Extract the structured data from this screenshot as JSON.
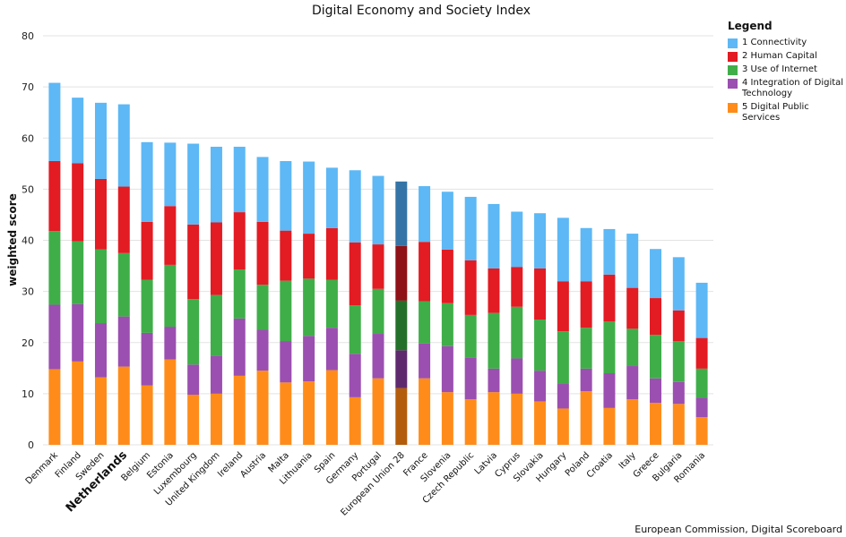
{
  "chart_data": {
    "type": "bar",
    "stacked": true,
    "title": "Digital Economy and Society Index",
    "ylabel": "weighted score",
    "xlabel": "",
    "ylim": [
      0,
      80
    ],
    "yticks": [
      0,
      10,
      20,
      30,
      40,
      50,
      60,
      70,
      80
    ],
    "grid": true,
    "legend_title": "Legend",
    "legend_position": "top-right",
    "highlight_category": "Netherlands",
    "emphasized_category": "European Union 28",
    "categories": [
      "Denmark",
      "Finland",
      "Sweden",
      "Netherlands",
      "Belgium",
      "Estonia",
      "Luxembourg",
      "United Kingdom",
      "Ireland",
      "Austria",
      "Malta",
      "Lithuania",
      "Spain",
      "Germany",
      "Portugal",
      "European Union 28",
      "France",
      "Slovenia",
      "Czech Republic",
      "Latvia",
      "Cyprus",
      "Slovakia",
      "Hungary",
      "Poland",
      "Croatia",
      "Italy",
      "Greece",
      "Bulgaria",
      "Romania"
    ],
    "series": [
      {
        "name": "5 Digital Public Services",
        "color": "#ff8c1a",
        "emphasis_color": "#b35c0c",
        "values": [
          14.8,
          16.3,
          13.2,
          15.3,
          11.6,
          16.7,
          9.8,
          10.0,
          13.5,
          14.5,
          12.2,
          12.4,
          14.6,
          9.3,
          13.0,
          11.1,
          13.0,
          10.3,
          8.9,
          10.3,
          10.0,
          8.5,
          7.1,
          10.5,
          7.2,
          8.9,
          8.2,
          8.0,
          5.4
        ]
      },
      {
        "name": "4 Integration of Digital Technology",
        "color": "#9b4fb0",
        "emphasis_color": "#5e2a6d",
        "values": [
          12.6,
          11.2,
          10.6,
          9.8,
          10.3,
          6.4,
          5.9,
          7.4,
          11.2,
          8.0,
          8.1,
          8.9,
          8.3,
          8.5,
          8.7,
          7.4,
          6.8,
          9.0,
          8.2,
          4.6,
          6.9,
          6.0,
          4.8,
          4.4,
          6.8,
          6.5,
          4.8,
          4.3,
          3.8
        ]
      },
      {
        "name": "3 Use of Internet",
        "color": "#3fae49",
        "emphasis_color": "#24702b",
        "values": [
          14.4,
          12.3,
          14.4,
          12.4,
          10.4,
          12.1,
          12.8,
          11.9,
          9.6,
          8.8,
          11.8,
          11.2,
          9.4,
          9.5,
          8.8,
          9.7,
          8.3,
          8.4,
          8.3,
          10.9,
          10.1,
          10.0,
          10.3,
          8.0,
          10.1,
          7.3,
          8.5,
          8.0,
          5.7
        ]
      },
      {
        "name": "2 Human Capital",
        "color": "#e31b23",
        "emphasis_color": "#8e1218",
        "values": [
          13.7,
          15.3,
          13.8,
          13.0,
          11.3,
          11.5,
          14.6,
          14.2,
          11.2,
          12.3,
          9.8,
          8.8,
          10.1,
          12.3,
          8.7,
          10.7,
          11.6,
          10.5,
          10.7,
          8.7,
          7.8,
          10.0,
          9.8,
          9.1,
          9.2,
          8.0,
          7.2,
          6.0,
          6.0
        ]
      },
      {
        "name": "1 Connectivity",
        "color": "#5db8f5",
        "emphasis_color": "#3574a6",
        "values": [
          15.3,
          12.8,
          14.9,
          16.1,
          15.6,
          12.4,
          15.8,
          14.8,
          12.8,
          12.7,
          13.6,
          14.1,
          11.8,
          14.1,
          13.4,
          12.6,
          10.9,
          11.3,
          12.4,
          12.6,
          10.8,
          10.8,
          12.4,
          10.4,
          8.9,
          10.6,
          9.6,
          10.4,
          10.8
        ]
      }
    ],
    "legend_order": [
      "1 Connectivity",
      "2 Human Capital",
      "3 Use of Internet",
      "4 Integration of Digital Technology",
      "5 Digital Public Services"
    ]
  },
  "source": "European Commission, Digital Scoreboard"
}
